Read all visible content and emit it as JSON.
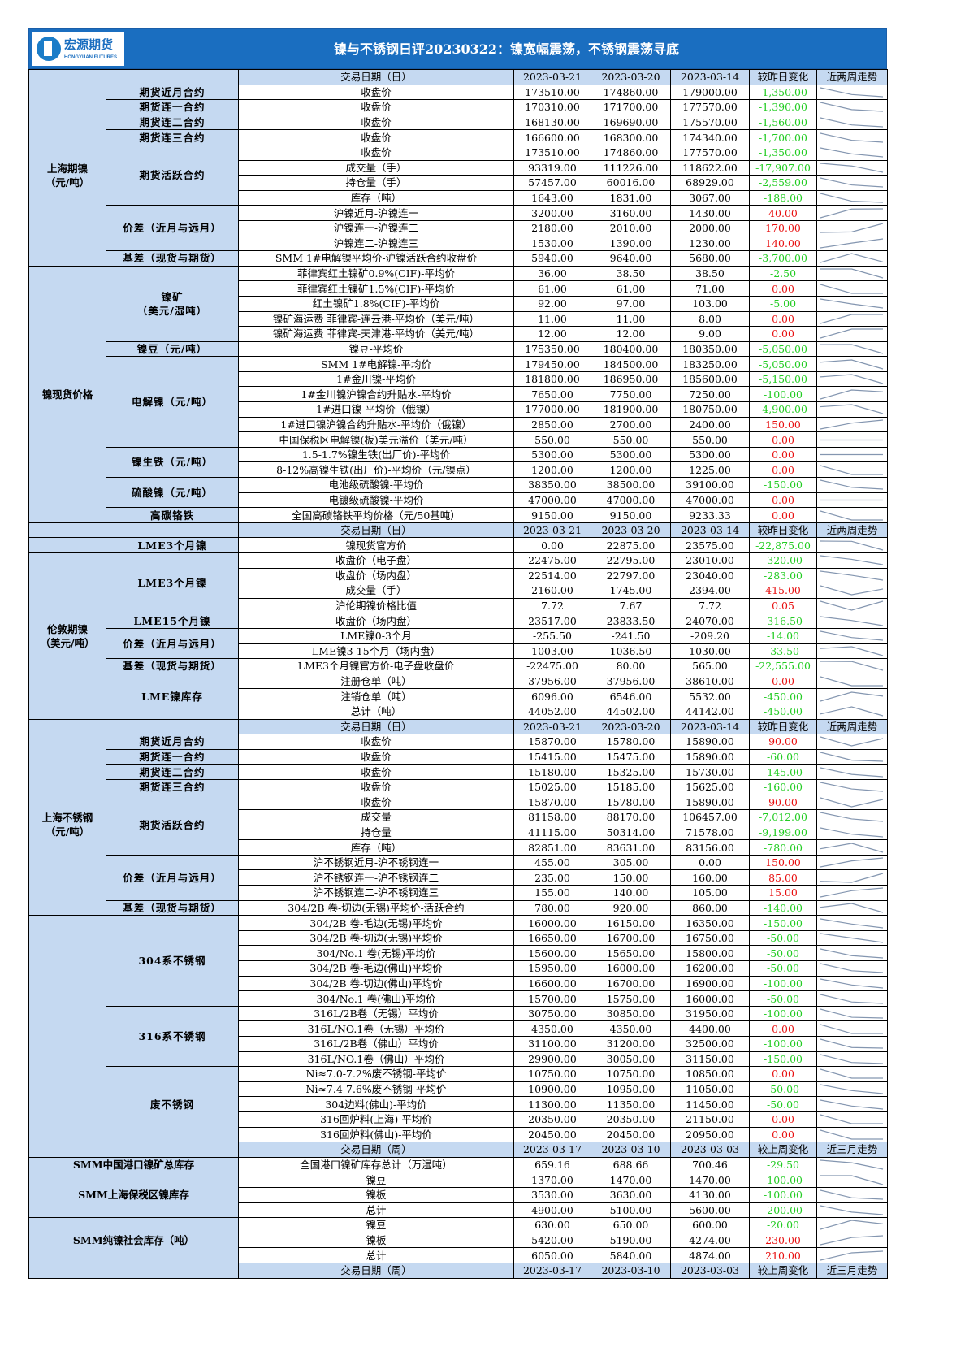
{
  "header": {
    "logo_cn": "宏源期货",
    "logo_en": "HONGYUAN FUTURES",
    "title": "镍与不锈钢日评20230322：镍宽幅震荡，不锈钢震荡寻底"
  },
  "colors": {
    "title_bar": "#1a6ec0",
    "label_bg": "#c5d9f1",
    "negative": "#22cc22",
    "positive": "#e81010",
    "sparkline": "#8496b0"
  },
  "sections": [
    {
      "type": "header",
      "cols": [
        "交易日期（日）",
        "2023-03-21",
        "2023-03-20",
        "2023-03-14",
        "较昨日变化",
        "近两周走势"
      ]
    },
    {
      "type": "group",
      "label": "上海期镍\n（元/吨）",
      "subs": [
        {
          "label": "期货近月合约",
          "rows": [
            [
              "收盘价",
              "173510.00",
              "174860.00",
              "179000.00",
              "-1,350.00"
            ]
          ]
        },
        {
          "label": "期货连一合约",
          "rows": [
            [
              "收盘价",
              "170310.00",
              "171700.00",
              "177570.00",
              "-1,390.00"
            ]
          ]
        },
        {
          "label": "期货连二合约",
          "rows": [
            [
              "收盘价",
              "168130.00",
              "169690.00",
              "175570.00",
              "-1,560.00"
            ]
          ]
        },
        {
          "label": "期货连三合约",
          "rows": [
            [
              "收盘价",
              "166600.00",
              "168300.00",
              "174340.00",
              "-1,700.00"
            ]
          ]
        },
        {
          "label": "期货活跃合约",
          "rows": [
            [
              "收盘价",
              "173510.00",
              "174860.00",
              "177570.00",
              "-1,350.00"
            ],
            [
              "成交量（手）",
              "93319.00",
              "111226.00",
              "118622.00",
              "-17,907.00"
            ],
            [
              "持仓量（手）",
              "57457.00",
              "60016.00",
              "68929.00",
              "-2,559.00"
            ],
            [
              "库存（吨）",
              "1643.00",
              "1831.00",
              "3067.00",
              "-188.00"
            ]
          ]
        },
        {
          "label": "价差（近月与远月）",
          "rows": [
            [
              "沪镍近月-沪镍连一",
              "3200.00",
              "3160.00",
              "1430.00",
              "40.00"
            ],
            [
              "沪镍连一-沪镍连二",
              "2180.00",
              "2010.00",
              "2000.00",
              "170.00"
            ],
            [
              "沪镍连二-沪镍连三",
              "1530.00",
              "1390.00",
              "1230.00",
              "140.00"
            ]
          ]
        },
        {
          "label": "基差（现货与期货）",
          "rows": [
            [
              "SMM 1#电解镍平均价-沪镍活跃合约收盘价",
              "5940.00",
              "9640.00",
              "5680.00",
              "-3,700.00"
            ]
          ]
        }
      ]
    },
    {
      "type": "group",
      "label": "镍现货价格",
      "subs": [
        {
          "label": "镍矿\n（美元/湿吨）",
          "rows": [
            [
              "菲律宾红土镍矿0.9%(CIF)-平均价",
              "36.00",
              "38.50",
              "38.50",
              "-2.50"
            ],
            [
              "菲律宾红土镍矿1.5%(CIF)-平均价",
              "61.00",
              "61.00",
              "71.00",
              "0.00"
            ],
            [
              "红土镍矿1.8%(CIF)-平均价",
              "92.00",
              "97.00",
              "103.00",
              "-5.00"
            ],
            [
              "镍矿海运费 菲律宾-连云港-平均价（美元/吨）",
              "11.00",
              "11.00",
              "8.00",
              "0.00"
            ],
            [
              "镍矿海运费 菲律宾-天津港-平均价（美元/吨）",
              "12.00",
              "12.00",
              "9.00",
              "0.00"
            ]
          ]
        },
        {
          "label": "镍豆（元/吨）",
          "rows": [
            [
              "镍豆-平均价",
              "175350.00",
              "180400.00",
              "180350.00",
              "-5,050.00"
            ]
          ]
        },
        {
          "label": "电解镍（元/吨）",
          "rows": [
            [
              "SMM 1#电解镍-平均价",
              "179450.00",
              "184500.00",
              "183250.00",
              "-5,050.00"
            ],
            [
              "1#金川镍-平均价",
              "181800.00",
              "186950.00",
              "185600.00",
              "-5,150.00"
            ],
            [
              "1#金川镍沪镍合约升贴水-平均价",
              "7650.00",
              "7750.00",
              "7250.00",
              "-100.00"
            ],
            [
              "1#进口镍-平均价（俄镍）",
              "177000.00",
              "181900.00",
              "180750.00",
              "-4,900.00"
            ],
            [
              "1#进口镍沪镍合约升贴水-平均价（俄镍）",
              "2850.00",
              "2700.00",
              "2400.00",
              "150.00"
            ],
            [
              "中国保税区电解镍(板)美元溢价（美元/吨）",
              "550.00",
              "550.00",
              "550.00",
              "0.00"
            ]
          ]
        },
        {
          "label": "镍生铁（元/吨）",
          "rows": [
            [
              "1.5-1.7%镍生铁(出厂价)-平均价",
              "5300.00",
              "5300.00",
              "5300.00",
              "0.00"
            ],
            [
              "8-12%高镍生铁(出厂价)-平均价（元/镍点）",
              "1200.00",
              "1200.00",
              "1225.00",
              "0.00"
            ]
          ]
        },
        {
          "label": "硫酸镍（元/吨）",
          "rows": [
            [
              "电池级硫酸镍-平均价",
              "38350.00",
              "38500.00",
              "39100.00",
              "-150.00"
            ],
            [
              "电镀级硫酸镍-平均价",
              "47000.00",
              "47000.00",
              "47000.00",
              "0.00"
            ]
          ]
        },
        {
          "label": "高碳铬铁",
          "rows": [
            [
              "全国高碳铬铁平均价格（元/50基吨）",
              "9150.00",
              "9150.00",
              "9233.33",
              "0.00"
            ]
          ]
        }
      ]
    },
    {
      "type": "header",
      "cols": [
        "交易日期（日）",
        "2023-03-21",
        "2023-03-20",
        "2023-03-14",
        "较昨日变化",
        "近两周走势"
      ]
    },
    {
      "type": "group",
      "label": "",
      "subs": [
        {
          "label": "LME3个月镍",
          "rows": [
            [
              "镍现货官方价",
              "0.00",
              "22875.00",
              "23575.00",
              "-22,875.00"
            ]
          ]
        }
      ]
    },
    {
      "type": "group",
      "label": "伦敦期镍\n（美元/吨）",
      "subs": [
        {
          "label": "LME3个月镍",
          "rows": [
            [
              "收盘价（电子盘）",
              "22475.00",
              "22795.00",
              "23010.00",
              "-320.00"
            ],
            [
              "收盘价（场内盘）",
              "22514.00",
              "22797.00",
              "23040.00",
              "-283.00"
            ],
            [
              "成交量（手）",
              "2160.00",
              "1745.00",
              "2394.00",
              "415.00"
            ],
            [
              "沪伦期镍价格比值",
              "7.72",
              "7.67",
              "7.72",
              "0.05"
            ]
          ]
        },
        {
          "label": "LME15个月镍",
          "rows": [
            [
              "收盘价（场内盘）",
              "23517.00",
              "23833.50",
              "24070.00",
              "-316.50"
            ]
          ]
        },
        {
          "label": "价差（近月与远月）",
          "rows": [
            [
              "LME镍0-3个月",
              "-255.50",
              "-241.50",
              "-209.20",
              "-14.00"
            ],
            [
              "LME镍3-15个月（场内盘）",
              "1003.00",
              "1036.50",
              "1030.00",
              "-33.50"
            ]
          ]
        },
        {
          "label": "基差（现货与期货）",
          "rows": [
            [
              "LME3个月镍官方价-电子盘收盘价",
              "-22475.00",
              "80.00",
              "565.00",
              "-22,555.00"
            ]
          ]
        },
        {
          "label": "LME镍库存",
          "rows": [
            [
              "注册仓单（吨）",
              "37956.00",
              "37956.00",
              "38610.00",
              "0.00"
            ],
            [
              "注销仓单（吨）",
              "6096.00",
              "6546.00",
              "5532.00",
              "-450.00"
            ],
            [
              "总计（吨）",
              "44052.00",
              "44502.00",
              "44142.00",
              "-450.00"
            ]
          ]
        }
      ]
    },
    {
      "type": "header",
      "cols": [
        "交易日期（日）",
        "2023-03-21",
        "2023-03-20",
        "2023-03-14",
        "较昨日变化",
        "近两周走势"
      ]
    },
    {
      "type": "group",
      "label": "上海不锈钢\n（元/吨）",
      "subs": [
        {
          "label": "期货近月合约",
          "rows": [
            [
              "收盘价",
              "15870.00",
              "15780.00",
              "15890.00",
              "90.00"
            ]
          ]
        },
        {
          "label": "期货连一合约",
          "rows": [
            [
              "收盘价",
              "15415.00",
              "15475.00",
              "15890.00",
              "-60.00"
            ]
          ]
        },
        {
          "label": "期货连二合约",
          "rows": [
            [
              "收盘价",
              "15180.00",
              "15325.00",
              "15730.00",
              "-145.00"
            ]
          ]
        },
        {
          "label": "期货连三合约",
          "rows": [
            [
              "收盘价",
              "15025.00",
              "15185.00",
              "15625.00",
              "-160.00"
            ]
          ]
        },
        {
          "label": "期货活跃合约",
          "rows": [
            [
              "收盘价",
              "15870.00",
              "15780.00",
              "15890.00",
              "90.00"
            ],
            [
              "成交量",
              "81158.00",
              "88170.00",
              "106457.00",
              "-7,012.00"
            ],
            [
              "持仓量",
              "41115.00",
              "50314.00",
              "71578.00",
              "-9,199.00"
            ],
            [
              "库存（吨）",
              "82851.00",
              "83631.00",
              "83156.00",
              "-780.00"
            ]
          ]
        },
        {
          "label": "价差（近月与远月）",
          "rows": [
            [
              "沪不锈钢近月-沪不锈钢连一",
              "455.00",
              "305.00",
              "0.00",
              "150.00"
            ],
            [
              "沪不锈钢连一-沪不锈钢连二",
              "235.00",
              "150.00",
              "160.00",
              "85.00"
            ],
            [
              "沪不锈钢连二-沪不锈钢连三",
              "155.00",
              "140.00",
              "105.00",
              "15.00"
            ]
          ]
        },
        {
          "label": "基差（现货与期货）",
          "rows": [
            [
              "304/2B 卷-切边(无锡)平均价-活跃合约",
              "780.00",
              "920.00",
              "860.00",
              "-140.00"
            ]
          ]
        }
      ]
    },
    {
      "type": "group",
      "label": "",
      "subs": [
        {
          "label": "304系不锈钢",
          "rows": [
            [
              "304/2B 卷-毛边(无锡)平均价",
              "16000.00",
              "16150.00",
              "16350.00",
              "-150.00"
            ],
            [
              "304/2B 卷-切边(无锡)平均价",
              "16650.00",
              "16700.00",
              "16750.00",
              "-50.00"
            ],
            [
              "304/No.1 卷(无锡)平均价",
              "15600.00",
              "15650.00",
              "15800.00",
              "-50.00"
            ],
            [
              "304/2B 卷-毛边(佛山)平均价",
              "15950.00",
              "16000.00",
              "16200.00",
              "-50.00"
            ],
            [
              "304/2B 卷-切边(佛山)平均价",
              "16600.00",
              "16700.00",
              "16900.00",
              "-100.00"
            ],
            [
              "304/No.1 卷(佛山)平均价",
              "15700.00",
              "15750.00",
              "16000.00",
              "-50.00"
            ]
          ]
        },
        {
          "label": "316系不锈钢",
          "rows": [
            [
              "316L/2B卷（无锡）平均价",
              "30750.00",
              "30850.00",
              "31950.00",
              "-100.00"
            ],
            [
              "316L/NO.1卷（无锡）平均价",
              "4350.00",
              "4350.00",
              "4400.00",
              "0.00"
            ],
            [
              "316L/2B卷（佛山）平均价",
              "31100.00",
              "31200.00",
              "32500.00",
              "-100.00"
            ],
            [
              "316L/NO.1卷（佛山）平均价",
              "29900.00",
              "30050.00",
              "31150.00",
              "-150.00"
            ]
          ]
        },
        {
          "label": "废不锈钢",
          "rows": [
            [
              "Ni≈7.0-7.2%废不锈钢-平均价",
              "10750.00",
              "10750.00",
              "10850.00",
              "0.00"
            ],
            [
              "Ni≈7.4-7.6%废不锈钢-平均价",
              "10900.00",
              "10950.00",
              "11050.00",
              "-50.00"
            ],
            [
              "304边料(佛山)-平均价",
              "11300.00",
              "11350.00",
              "11450.00",
              "-50.00"
            ],
            [
              "316回炉料(上海)-平均价",
              "20350.00",
              "20350.00",
              "21150.00",
              "0.00"
            ],
            [
              "316回炉料(佛山)-平均价",
              "20450.00",
              "20450.00",
              "20950.00",
              "0.00"
            ]
          ]
        }
      ]
    },
    {
      "type": "header",
      "cols": [
        "交易日期（周）",
        "2023-03-17",
        "2023-03-10",
        "2023-03-03",
        "较上周变化",
        "近三月走势"
      ]
    },
    {
      "type": "merged",
      "label": "SMM中国港口镍矿总库存",
      "rows": [
        [
          "全国港口镍矿库存总计（万湿吨）",
          "659.16",
          "688.66",
          "700.46",
          "-29.50"
        ]
      ]
    },
    {
      "type": "merged",
      "label": "SMM上海保税区镍库存",
      "rows": [
        [
          "镍豆",
          "1370.00",
          "1470.00",
          "1470.00",
          "-100.00"
        ],
        [
          "镍板",
          "3530.00",
          "3630.00",
          "4130.00",
          "-100.00"
        ],
        [
          "总计",
          "4900.00",
          "5100.00",
          "5600.00",
          "-200.00"
        ]
      ]
    },
    {
      "type": "merged",
      "label": "SMM纯镍社会库存（吨）",
      "rows": [
        [
          "镍豆",
          "630.00",
          "650.00",
          "600.00",
          "-20.00"
        ],
        [
          "镍板",
          "5420.00",
          "5190.00",
          "4274.00",
          "230.00"
        ],
        [
          "总计",
          "6050.00",
          "5840.00",
          "4874.00",
          "210.00"
        ]
      ]
    },
    {
      "type": "header",
      "cols": [
        "交易日期（周）",
        "2023-03-17",
        "2023-03-10",
        "2023-03-03",
        "较上周变化",
        "近三月走势"
      ]
    }
  ]
}
